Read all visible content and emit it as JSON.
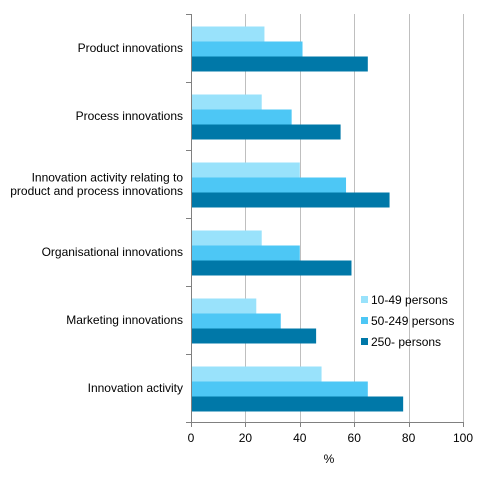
{
  "chart_data": {
    "type": "bar",
    "orientation": "horizontal",
    "categories": [
      [
        "Product innovations"
      ],
      [
        "Process innovations"
      ],
      [
        "Innovation activity relating to",
        "product and process innovations"
      ],
      [
        "Organisational innovations"
      ],
      [
        "Marketing innovations"
      ],
      [
        "Innovation activity"
      ]
    ],
    "series": [
      {
        "name": "10-49 persons",
        "color": "#99e2fb",
        "values": [
          27,
          26,
          40,
          26,
          24,
          48
        ]
      },
      {
        "name": "50-249 persons",
        "color": "#4dc7f5",
        "values": [
          41,
          37,
          57,
          40,
          33,
          65
        ]
      },
      {
        "name": "250- persons",
        "color": "#0078a8",
        "values": [
          65,
          55,
          73,
          59,
          46,
          78
        ]
      }
    ],
    "xlim": [
      0,
      100
    ],
    "xticks": [
      "0",
      "20",
      "40",
      "60",
      "80",
      "100"
    ],
    "xlabel": "%",
    "ylabel": "",
    "title": "",
    "grid": "vertical",
    "legend": "right"
  }
}
